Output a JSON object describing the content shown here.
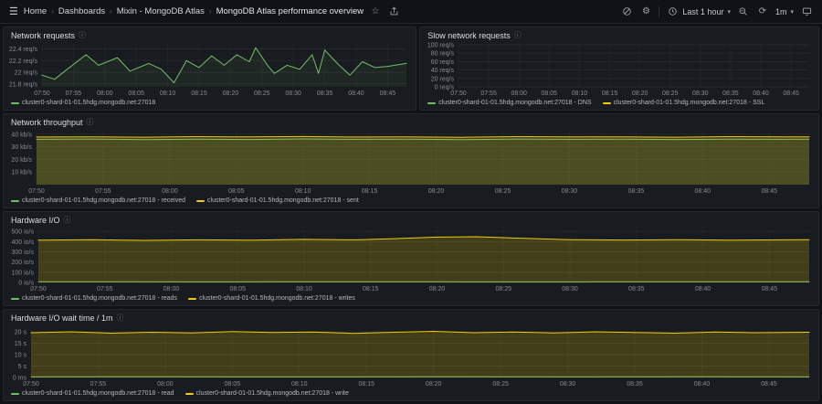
{
  "navbar": {
    "breadcrumbs": [
      "Home",
      "Dashboards",
      "Mixin - MongoDB Atlas",
      "MongoDB Atlas performance overview"
    ],
    "time_range_label": "Last 1 hour",
    "refresh_interval": "1m"
  },
  "colors": {
    "green": "#73bf69",
    "yellow": "#f2cc0c",
    "panel_bg": "#181b1f",
    "page_bg": "#111217"
  },
  "chart_data": {
    "network_requests": {
      "type": "line",
      "title": "Network requests",
      "pad_left": 42,
      "x_range": [
        0,
        58
      ],
      "x_tick_step": 5,
      "x_ticks": [
        "07:50",
        "07:55",
        "08:00",
        "08:05",
        "08:10",
        "08:15",
        "08:20",
        "08:25",
        "08:30",
        "08:35",
        "08:40",
        "08:45"
      ],
      "ylim": [
        21.75,
        22.47
      ],
      "y_ticks": [
        {
          "v": 22.4,
          "label": "22.4 req/s"
        },
        {
          "v": 22.2,
          "label": "22.2 req/s"
        },
        {
          "v": 22.0,
          "label": "22 req/s"
        },
        {
          "v": 21.8,
          "label": "21.8 req/s"
        }
      ],
      "series": [
        {
          "name": "cluster0-shard-01-01.5hdg.mongodb.net:27018",
          "color": "#73bf69",
          "fill": 0.08,
          "points": [
            [
              0,
              21.95
            ],
            [
              2,
              21.88
            ],
            [
              4,
              22.05
            ],
            [
              7,
              22.3
            ],
            [
              9,
              22.12
            ],
            [
              12,
              22.25
            ],
            [
              14,
              22.02
            ],
            [
              17,
              22.15
            ],
            [
              19,
              22.05
            ],
            [
              21,
              21.82
            ],
            [
              23,
              22.2
            ],
            [
              25,
              22.08
            ],
            [
              27,
              22.28
            ],
            [
              29,
              22.12
            ],
            [
              31,
              22.3
            ],
            [
              33,
              22.18
            ],
            [
              34,
              22.42
            ],
            [
              36,
              22.1
            ],
            [
              37,
              21.98
            ],
            [
              39,
              22.12
            ],
            [
              41,
              22.05
            ],
            [
              43,
              22.3
            ],
            [
              44,
              21.98
            ],
            [
              45,
              22.38
            ],
            [
              47,
              22.15
            ],
            [
              49,
              21.95
            ],
            [
              51,
              22.18
            ],
            [
              53,
              22.08
            ],
            [
              55,
              22.1
            ],
            [
              58,
              22.15
            ]
          ]
        }
      ]
    },
    "slow_network_requests": {
      "type": "line",
      "title": "Slow network requests",
      "pad_left": 42,
      "x_range": [
        0,
        58
      ],
      "x_tick_step": 5,
      "x_ticks": [
        "07:50",
        "07:55",
        "08:00",
        "08:05",
        "08:10",
        "08:15",
        "08:20",
        "08:25",
        "08:30",
        "08:35",
        "08:40",
        "08:45"
      ],
      "ylim": [
        0,
        100
      ],
      "y_ticks": [
        {
          "v": 100,
          "label": "100 req/s"
        },
        {
          "v": 80,
          "label": "80 req/s"
        },
        {
          "v": 60,
          "label": "60 req/s"
        },
        {
          "v": 40,
          "label": "40 req/s"
        },
        {
          "v": 20,
          "label": "20 req/s"
        },
        {
          "v": 0,
          "label": "0 req/s"
        }
      ],
      "series": [
        {
          "name": "cluster0-shard-01-01.5hdg.mongodb.net:27018 - DNS",
          "color": "#73bf69",
          "fill": 0,
          "points": []
        },
        {
          "name": "cluster0-shard-01-01.5hdg.mongodb.net:27018 - SSL",
          "color": "#f2cc0c",
          "fill": 0,
          "points": []
        }
      ]
    },
    "network_throughput": {
      "type": "line",
      "title": "Network throughput",
      "pad_left": 36,
      "x_range": [
        0,
        58
      ],
      "x_tick_step": 5,
      "x_ticks": [
        "07:50",
        "07:55",
        "08:00",
        "08:05",
        "08:10",
        "08:15",
        "08:20",
        "08:25",
        "08:30",
        "08:35",
        "08:40",
        "08:45"
      ],
      "ylim": [
        0,
        42
      ],
      "y_ticks": [
        {
          "v": 40,
          "label": "40 kb/s"
        },
        {
          "v": 30,
          "label": "30 kb/s"
        },
        {
          "v": 20,
          "label": "20 kb/s"
        },
        {
          "v": 10,
          "label": "10 kb/s"
        }
      ],
      "series": [
        {
          "name": "cluster0-shard-01-01.5hdg.mongodb.net:27018 - received",
          "color": "#73bf69",
          "fill": 0.12,
          "points": [
            [
              0,
              35.9
            ],
            [
              4,
              36.1
            ],
            [
              8,
              35.7
            ],
            [
              12,
              36.0
            ],
            [
              16,
              35.8
            ],
            [
              20,
              36.2
            ],
            [
              24,
              35.9
            ],
            [
              28,
              36.0
            ],
            [
              32,
              35.6
            ],
            [
              36,
              36.1
            ],
            [
              40,
              35.9
            ],
            [
              44,
              36.0
            ],
            [
              48,
              35.8
            ],
            [
              52,
              36.0
            ],
            [
              56,
              35.9
            ],
            [
              58,
              36.0
            ]
          ]
        },
        {
          "name": "cluster0-shard-01-01.5hdg.mongodb.net:27018 - sent",
          "color": "#f2cc0c",
          "fill": 0.2,
          "points": [
            [
              0,
              37.7
            ],
            [
              4,
              37.9
            ],
            [
              8,
              37.6
            ],
            [
              12,
              38.0
            ],
            [
              16,
              37.8
            ],
            [
              20,
              38.1
            ],
            [
              24,
              37.7
            ],
            [
              28,
              37.9
            ],
            [
              32,
              37.5
            ],
            [
              36,
              38.0
            ],
            [
              40,
              37.8
            ],
            [
              44,
              37.9
            ],
            [
              48,
              37.6
            ],
            [
              52,
              38.0
            ],
            [
              56,
              37.8
            ],
            [
              58,
              37.9
            ]
          ]
        }
      ]
    },
    "hardware_io": {
      "type": "line",
      "title": "Hardware I/O",
      "pad_left": 38,
      "x_range": [
        0,
        58
      ],
      "x_tick_step": 5,
      "x_ticks": [
        "07:50",
        "07:55",
        "08:00",
        "08:05",
        "08:10",
        "08:15",
        "08:20",
        "08:25",
        "08:30",
        "08:35",
        "08:40",
        "08:45"
      ],
      "ylim": [
        0,
        520
      ],
      "y_ticks": [
        {
          "v": 500,
          "label": "500 io/s"
        },
        {
          "v": 400,
          "label": "400 io/s"
        },
        {
          "v": 300,
          "label": "300 io/s"
        },
        {
          "v": 200,
          "label": "200 io/s"
        },
        {
          "v": 100,
          "label": "100 io/s"
        },
        {
          "v": 0,
          "label": "0 io/s"
        }
      ],
      "series": [
        {
          "name": "cluster0-shard-01-01.5hdg.mongodb.net:27018 - reads",
          "color": "#73bf69",
          "fill": 0.1,
          "points": [
            [
              0,
              6
            ],
            [
              6,
              7
            ],
            [
              12,
              5
            ],
            [
              18,
              6
            ],
            [
              24,
              7
            ],
            [
              30,
              6
            ],
            [
              36,
              5
            ],
            [
              42,
              6
            ],
            [
              48,
              7
            ],
            [
              54,
              6
            ],
            [
              58,
              6
            ]
          ]
        },
        {
          "name": "cluster0-shard-01-01.5hdg.mongodb.net:27018 - writes",
          "color": "#f2cc0c",
          "fill": 0.2,
          "points": [
            [
              0,
              415
            ],
            [
              4,
              420
            ],
            [
              8,
              412
            ],
            [
              12,
              418
            ],
            [
              16,
              415
            ],
            [
              20,
              422
            ],
            [
              24,
              418
            ],
            [
              27,
              430
            ],
            [
              30,
              445
            ],
            [
              33,
              448
            ],
            [
              36,
              435
            ],
            [
              40,
              420
            ],
            [
              44,
              416
            ],
            [
              48,
              420
            ],
            [
              52,
              414
            ],
            [
              56,
              418
            ],
            [
              58,
              420
            ]
          ]
        }
      ]
    },
    "hardware_io_wait": {
      "type": "line",
      "title": "Hardware I/O wait time / 1m",
      "pad_left": 30,
      "x_range": [
        0,
        58
      ],
      "x_tick_step": 5,
      "x_ticks": [
        "07:50",
        "07:55",
        "08:00",
        "08:05",
        "08:10",
        "08:15",
        "08:20",
        "08:25",
        "08:30",
        "08:35",
        "08:40",
        "08:45"
      ],
      "ylim": [
        0,
        22
      ],
      "y_ticks": [
        {
          "v": 20,
          "label": "20 s"
        },
        {
          "v": 15,
          "label": "15 s"
        },
        {
          "v": 10,
          "label": "10 s"
        },
        {
          "v": 5,
          "label": "5 s"
        },
        {
          "v": 0,
          "label": "0 ms"
        }
      ],
      "series": [
        {
          "name": "cluster0-shard-01-01.5hdg.mongodb.net:27018 - read",
          "color": "#73bf69",
          "fill": 0.1,
          "points": [
            [
              0,
              0.3
            ],
            [
              10,
              0.35
            ],
            [
              20,
              0.3
            ],
            [
              30,
              0.35
            ],
            [
              40,
              0.3
            ],
            [
              50,
              0.35
            ],
            [
              58,
              0.3
            ]
          ]
        },
        {
          "name": "cluster0-shard-01-01.5hdg.mongodb.net:27018 - write",
          "color": "#f2cc0c",
          "fill": 0.2,
          "points": [
            [
              0,
              19.6
            ],
            [
              3,
              20.0
            ],
            [
              6,
              19.4
            ],
            [
              9,
              19.8
            ],
            [
              12,
              19.5
            ],
            [
              15,
              20.1
            ],
            [
              18,
              19.7
            ],
            [
              21,
              19.9
            ],
            [
              24,
              19.3
            ],
            [
              27,
              19.8
            ],
            [
              30,
              20.2
            ],
            [
              33,
              19.6
            ],
            [
              36,
              19.9
            ],
            [
              39,
              19.5
            ],
            [
              42,
              20.0
            ],
            [
              45,
              19.7
            ],
            [
              48,
              19.4
            ],
            [
              51,
              19.9
            ],
            [
              54,
              19.6
            ],
            [
              58,
              19.8
            ]
          ]
        }
      ]
    }
  }
}
